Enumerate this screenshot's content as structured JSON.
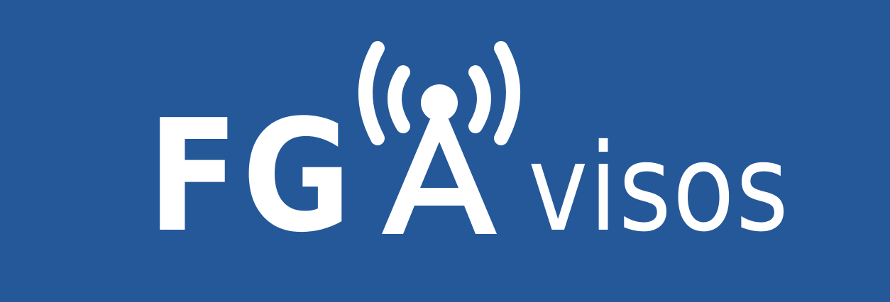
{
  "logo": {
    "prefix": "FG",
    "suffix": "visos",
    "tower_letter": "A",
    "icon": "radio-tower-icon",
    "colors": {
      "background": "#245899",
      "foreground": "#ffffff"
    }
  }
}
